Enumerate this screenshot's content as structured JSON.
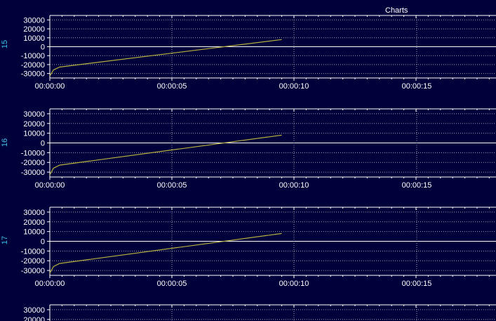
{
  "window": {
    "title": "Charts"
  },
  "colors": {
    "background": "#00003a",
    "grid": "#c8c8c8",
    "axis": "#ffffff",
    "zero_line": "#ffffff",
    "series": "#b8b040",
    "channel_label": "#39c6e8"
  },
  "chart_data": [
    {
      "type": "line",
      "ylabel": "15",
      "ylim": [
        -35000,
        35000
      ],
      "yticks": [
        30000,
        20000,
        10000,
        0,
        -10000,
        -20000,
        -30000
      ],
      "xticks": [
        "00:00:00",
        "00:00:05",
        "00:00:10",
        "00:00:15"
      ],
      "xlim": [
        0,
        18
      ],
      "grid": true,
      "series": [
        {
          "x": [
            0,
            0.15,
            0.4,
            9.5
          ],
          "y": [
            -32768,
            -26000,
            -22800,
            8000
          ]
        }
      ]
    },
    {
      "type": "line",
      "ylabel": "16",
      "ylim": [
        -35000,
        35000
      ],
      "yticks": [
        30000,
        20000,
        10000,
        0,
        -10000,
        -20000,
        -30000
      ],
      "xticks": [
        "00:00:00",
        "00:00:05",
        "00:00:10",
        "00:00:15"
      ],
      "xlim": [
        0,
        18
      ],
      "grid": true,
      "series": [
        {
          "x": [
            0,
            0.15,
            0.4,
            9.5
          ],
          "y": [
            -32768,
            -26000,
            -22800,
            8000
          ]
        }
      ]
    },
    {
      "type": "line",
      "ylabel": "17",
      "ylim": [
        -35000,
        35000
      ],
      "yticks": [
        30000,
        20000,
        10000,
        0,
        -10000,
        -20000,
        -30000
      ],
      "xticks": [
        "00:00:00",
        "00:00:05",
        "00:00:10",
        "00:00:15"
      ],
      "xlim": [
        0,
        18
      ],
      "grid": true,
      "series": [
        {
          "x": [
            0,
            0.15,
            0.4,
            9.5
          ],
          "y": [
            -32768,
            -26000,
            -22800,
            8000
          ]
        }
      ]
    },
    {
      "type": "line",
      "ylabel": "",
      "ylim": [
        -35000,
        35000
      ],
      "yticks": [
        30000,
        20000
      ],
      "xticks": [],
      "xlim": [
        0,
        18
      ],
      "grid": true,
      "series": []
    }
  ]
}
